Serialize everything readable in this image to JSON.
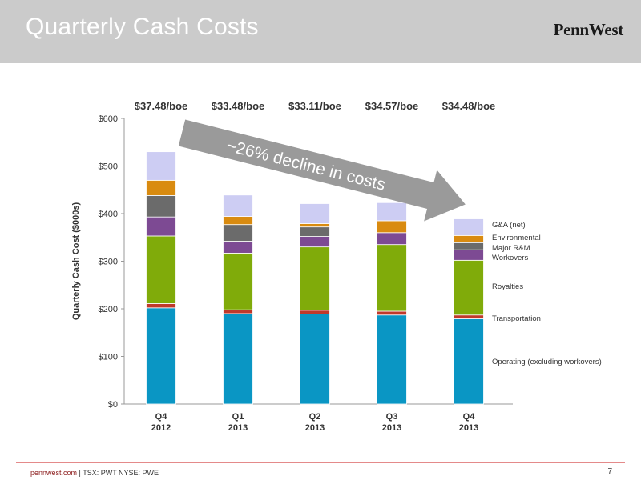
{
  "slide": {
    "title": "Quarterly Cash Costs",
    "logo": "PennWest",
    "footer_site": "pennwest.com",
    "footer_rest": " | TSX: PWT  NYSE: PWE",
    "page_number": "7"
  },
  "chart_data": {
    "type": "bar",
    "stacked": true,
    "ylabel": "Quarterly Cash Cost ($000s)",
    "ylim": [
      0,
      600
    ],
    "yticks": [
      "$0",
      "$100",
      "$200",
      "$300",
      "$400",
      "$500",
      "$600"
    ],
    "categories": [
      [
        "Q4",
        "2012"
      ],
      [
        "Q1",
        "2013"
      ],
      [
        "Q2",
        "2013"
      ],
      [
        "Q3",
        "2013"
      ],
      [
        "Q4",
        "2013"
      ]
    ],
    "per_boe_labels": [
      "$37.48/boe",
      "$33.48/boe",
      "$33.11/boe",
      "$34.57/boe",
      "$34.48/boe"
    ],
    "annotation": "~26% decline in costs",
    "series": [
      {
        "name": "Operating (excluding workovers)",
        "color": "#0a96c4",
        "values": [
          202,
          190,
          189,
          187,
          179
        ]
      },
      {
        "name": "Transportation",
        "color": "#c0392b",
        "values": [
          9,
          8,
          8,
          8,
          8
        ]
      },
      {
        "name": "Royalties",
        "color": "#80ab0a",
        "values": [
          142,
          119,
          133,
          140,
          115
        ]
      },
      {
        "name": "Workovers",
        "color": "#7d4a93",
        "values": [
          40,
          25,
          22,
          25,
          22
        ]
      },
      {
        "name": "Major R&M",
        "color": "#6b6b6b",
        "values": [
          45,
          35,
          20,
          0,
          15
        ]
      },
      {
        "name": "Environmental",
        "color": "#d98b10",
        "values": [
          32,
          17,
          7,
          25,
          15
        ]
      },
      {
        "name": "G&A (net)",
        "color": "#cdcdf3",
        "values": [
          60,
          45,
          42,
          38,
          35
        ]
      }
    ]
  }
}
